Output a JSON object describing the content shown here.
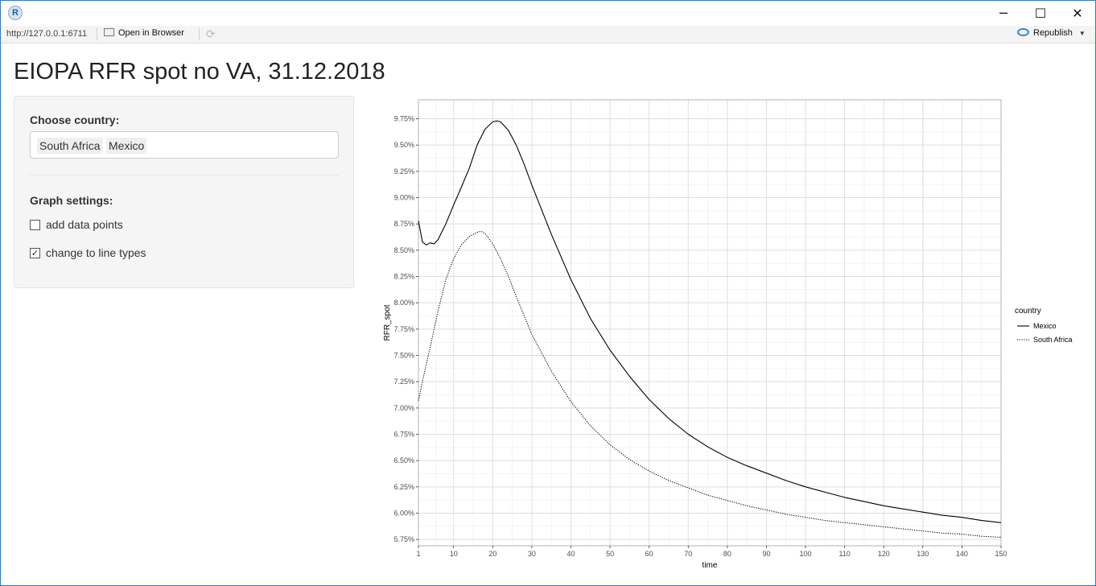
{
  "window": {
    "app_icon_letter": "R",
    "min_glyph": "─",
    "max_glyph": "☐",
    "close_glyph": "✕"
  },
  "toolbar": {
    "url": "http://127.0.0.1:6711",
    "open_browser": "Open in Browser",
    "republish": "Republish",
    "republish_caret": "▼",
    "refresh_glyph": "⟳"
  },
  "page": {
    "title": "EIOPA RFR spot no VA, 31.12.2018"
  },
  "sidebar": {
    "country_label": "Choose country:",
    "selected_countries": [
      "South Africa",
      "Mexico"
    ],
    "graph_settings_label": "Graph settings:",
    "checkboxes": [
      {
        "label": "add data points",
        "checked": false
      },
      {
        "label": "change to line types",
        "checked": true
      }
    ]
  },
  "chart_data": {
    "type": "line",
    "xlabel": "time",
    "ylabel": "RFR_spot",
    "xlim": [
      1,
      150
    ],
    "ylim": [
      5.75,
      9.75
    ],
    "x_ticks": [
      1,
      10,
      20,
      30,
      40,
      50,
      60,
      70,
      80,
      90,
      100,
      110,
      120,
      130,
      140,
      150
    ],
    "y_ticks": [
      5.75,
      6.0,
      6.25,
      6.5,
      6.75,
      7.0,
      7.25,
      7.5,
      7.75,
      8.0,
      8.25,
      8.5,
      8.75,
      9.0,
      9.25,
      9.5,
      9.75
    ],
    "y_tick_labels": [
      "5.75%",
      "6.00%",
      "6.25%",
      "6.50%",
      "6.75%",
      "7.00%",
      "7.25%",
      "7.50%",
      "7.75%",
      "8.00%",
      "8.25%",
      "8.50%",
      "8.75%",
      "9.00%",
      "9.25%",
      "9.50%",
      "9.75%"
    ],
    "grid": true,
    "legend": {
      "title": "country",
      "placement": "right"
    },
    "series": [
      {
        "name": "Mexico",
        "linetype": "solid",
        "x": [
          1,
          2,
          3,
          4,
          5,
          6,
          8,
          10,
          12,
          14,
          16,
          18,
          20,
          21,
          22,
          24,
          26,
          28,
          30,
          35,
          40,
          45,
          50,
          55,
          60,
          65,
          70,
          75,
          80,
          85,
          90,
          95,
          100,
          105,
          110,
          115,
          120,
          125,
          130,
          135,
          140,
          145,
          150
        ],
        "values": [
          8.78,
          8.58,
          8.55,
          8.57,
          8.56,
          8.6,
          8.75,
          8.93,
          9.1,
          9.28,
          9.5,
          9.65,
          9.72,
          9.73,
          9.72,
          9.64,
          9.5,
          9.32,
          9.12,
          8.65,
          8.22,
          7.85,
          7.55,
          7.3,
          7.08,
          6.9,
          6.75,
          6.63,
          6.53,
          6.45,
          6.38,
          6.31,
          6.25,
          6.2,
          6.15,
          6.11,
          6.07,
          6.04,
          6.01,
          5.98,
          5.96,
          5.93,
          5.91
        ]
      },
      {
        "name": "South Africa",
        "linetype": "dotted",
        "x": [
          1,
          2,
          4,
          6,
          8,
          10,
          12,
          14,
          16,
          17,
          18,
          20,
          22,
          24,
          26,
          28,
          30,
          35,
          40,
          45,
          50,
          55,
          60,
          65,
          70,
          75,
          80,
          85,
          90,
          95,
          100,
          105,
          110,
          115,
          120,
          125,
          130,
          135,
          140,
          145,
          150
        ],
        "values": [
          7.07,
          7.25,
          7.58,
          7.92,
          8.22,
          8.42,
          8.55,
          8.63,
          8.67,
          8.68,
          8.66,
          8.56,
          8.42,
          8.25,
          8.06,
          7.88,
          7.7,
          7.35,
          7.06,
          6.83,
          6.65,
          6.51,
          6.4,
          6.31,
          6.24,
          6.17,
          6.12,
          6.07,
          6.03,
          5.99,
          5.96,
          5.93,
          5.91,
          5.89,
          5.87,
          5.85,
          5.83,
          5.81,
          5.8,
          5.78,
          5.77
        ]
      }
    ]
  }
}
